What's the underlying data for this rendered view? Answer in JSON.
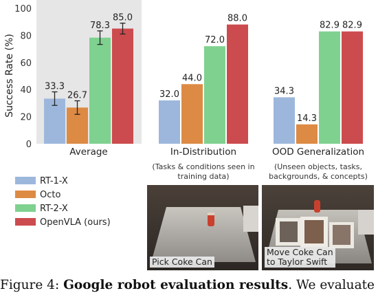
{
  "chart_data": {
    "type": "bar",
    "ylabel": "Success Rate (%)",
    "ylim": [
      0,
      100
    ],
    "yticks": [
      "0",
      "20",
      "40",
      "60",
      "80",
      "100"
    ],
    "grid": false,
    "legend_position": "bottom-left",
    "categories": [
      "Average",
      "In-Distribution",
      "OOD Generalization"
    ],
    "category_subtitles": [
      "",
      "(Tasks & conditions seen in\ntraining data)",
      "(Unseen objects, tasks,\nbackgrounds, & concepts)"
    ],
    "highlighted_category": "Average",
    "series": [
      {
        "name": "RT-1-X",
        "color": "#9db7dc",
        "values": [
          33.3,
          32.0,
          34.3
        ],
        "labels": [
          "33.3",
          "32.0",
          "34.3"
        ],
        "error": [
          5,
          null,
          null
        ]
      },
      {
        "name": "Octo",
        "color": "#dd8a44",
        "values": [
          26.7,
          44.0,
          14.3
        ],
        "labels": [
          "26.7",
          "44.0",
          "14.3"
        ],
        "error": [
          5,
          null,
          null
        ]
      },
      {
        "name": "RT-2-X",
        "color": "#7fd190",
        "values": [
          78.3,
          72.0,
          82.9
        ],
        "labels": [
          "78.3",
          "72.0",
          "82.9"
        ],
        "error": [
          5,
          null,
          null
        ]
      },
      {
        "name": "OpenVLA (ours)",
        "color": "#cc4b4e",
        "values": [
          85.0,
          88.0,
          82.9
        ],
        "labels": [
          "85.0",
          "88.0",
          "82.9"
        ],
        "error": [
          4,
          null,
          null
        ]
      }
    ]
  },
  "photos": [
    {
      "label": "Pick Coke Can"
    },
    {
      "label": "Move Coke Can\nto Taylor Swift"
    }
  ],
  "caption": {
    "prefix": "Figure 4: ",
    "bold": "Google robot evaluation results",
    "rest": ". We evaluate"
  }
}
